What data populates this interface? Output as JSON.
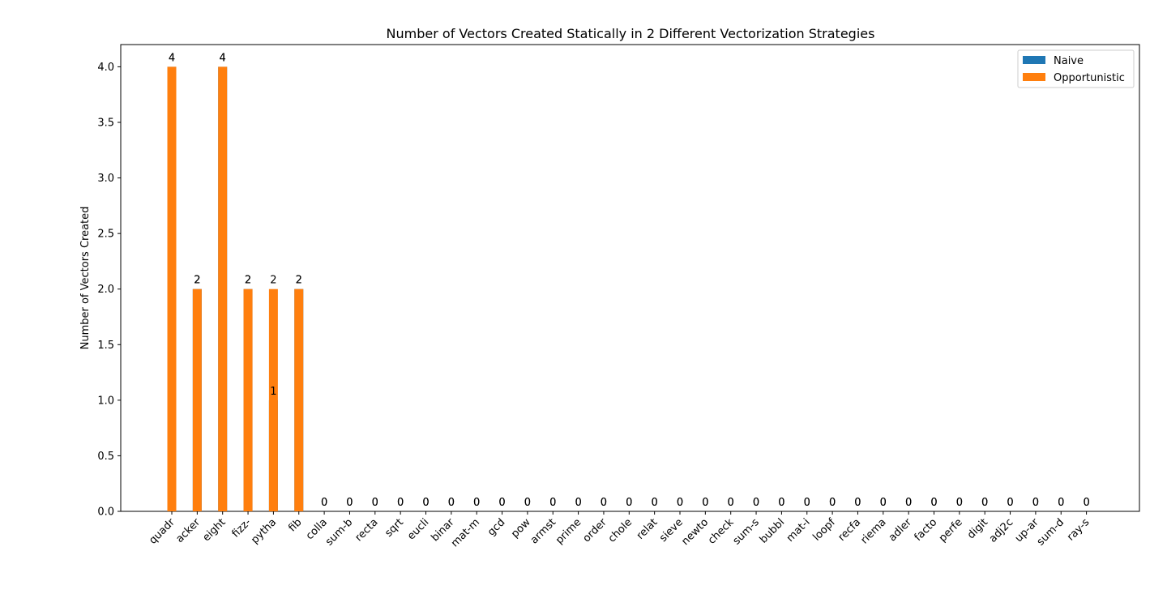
{
  "colors": {
    "naive": "#1f77b4",
    "opportunistic": "#ff7f0e"
  },
  "chart_data": {
    "type": "bar",
    "title": "Number of Vectors Created Statically in 2 Different Vectorization Strategies",
    "xlabel": "",
    "ylabel": "Number of Vectors Created",
    "ylim": [
      0,
      4.2
    ],
    "yticks": [
      "0.0",
      "0.5",
      "1.0",
      "1.5",
      "2.0",
      "2.5",
      "3.0",
      "3.5",
      "4.0"
    ],
    "grid": false,
    "legend_position": "top-right",
    "categories": [
      "quadr",
      "acker",
      "eight",
      "fizz-",
      "pytha",
      "fib",
      "colla",
      "sum-b",
      "recta",
      "sqrt",
      "eucli",
      "binar",
      "mat-m",
      "gcd",
      "pow",
      "armst",
      "prime",
      "order",
      "chole",
      "relat",
      "sieve",
      "newto",
      "check",
      "sum-s",
      "bubbl",
      "mat-i",
      "loopf",
      "recfa",
      "riema",
      "adler",
      "facto",
      "perfe",
      "digit",
      "adj2c",
      "up-ar",
      "sum-d",
      "ray-s"
    ],
    "series": [
      {
        "name": "Naive",
        "values": [
          4,
          2,
          4,
          2,
          1,
          2,
          0,
          0,
          0,
          0,
          0,
          0,
          0,
          0,
          0,
          0,
          0,
          0,
          0,
          0,
          0,
          0,
          0,
          0,
          0,
          0,
          0,
          0,
          0,
          0,
          0,
          0,
          0,
          0,
          0,
          0,
          0
        ]
      },
      {
        "name": "Opportunistic",
        "values": [
          4,
          2,
          4,
          2,
          2,
          2,
          0,
          0,
          0,
          0,
          0,
          0,
          0,
          0,
          0,
          0,
          0,
          0,
          0,
          0,
          0,
          0,
          0,
          0,
          0,
          0,
          0,
          0,
          0,
          0,
          0,
          0,
          0,
          0,
          0,
          0,
          0
        ]
      }
    ]
  }
}
